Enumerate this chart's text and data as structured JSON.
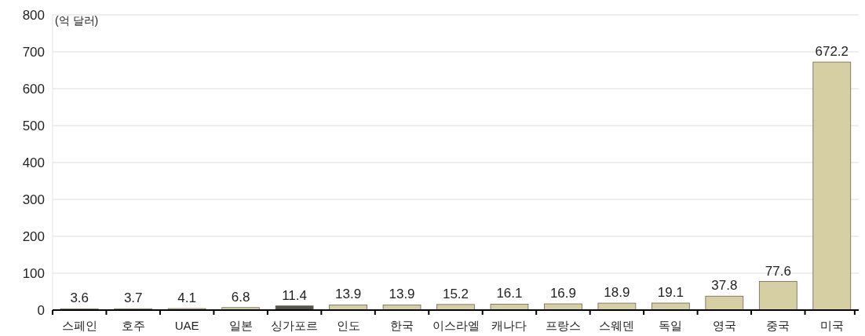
{
  "chart_data": {
    "type": "bar",
    "ylabel": "(억 달러)",
    "categories": [
      "스페인",
      "호주",
      "UAE",
      "일본",
      "싱가포르",
      "인도",
      "한국",
      "이스라엘",
      "캐나다",
      "프랑스",
      "스웨덴",
      "독일",
      "영국",
      "중국",
      "미국"
    ],
    "values": [
      3.6,
      3.7,
      4.1,
      6.8,
      11.4,
      13.9,
      13.9,
      15.2,
      16.1,
      16.9,
      18.9,
      19.1,
      37.8,
      77.6,
      672.2
    ],
    "colors": [
      "#d6cfa3",
      "#d6cfa3",
      "#d6cfa3",
      "#d6cfa3",
      "#55554a",
      "#d6cfa3",
      "#d6cfa3",
      "#d6cfa3",
      "#d6cfa3",
      "#d6cfa3",
      "#d6cfa3",
      "#d6cfa3",
      "#d6cfa3",
      "#d6cfa3",
      "#d6cfa3"
    ],
    "ylim": [
      0,
      800
    ],
    "yticks": [
      0,
      100,
      200,
      300,
      400,
      500,
      600,
      700,
      800
    ],
    "grid": "y",
    "data_labels": true
  }
}
